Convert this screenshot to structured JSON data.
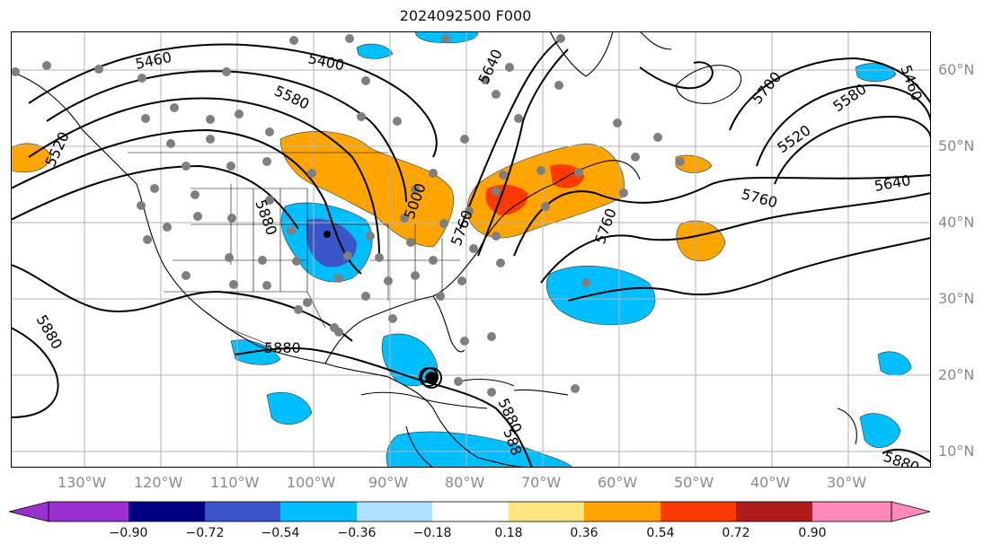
{
  "title": "2024092500 F000",
  "lat_labels": [
    "60°N",
    "50°N",
    "40°N",
    "30°N",
    "20°N",
    "10°N"
  ],
  "lon_labels": [
    "130°W",
    "120°W",
    "110°W",
    "100°W",
    "90°W",
    "80°W",
    "70°W",
    "60°W",
    "50°W",
    "40°W",
    "30°W"
  ],
  "contour_labels": [
    "5460",
    "5400",
    "5640",
    "5580",
    "5520",
    "5880",
    "5700",
    "5580",
    "5520",
    "5760",
    "5640",
    "5460",
    "5880",
    "5000",
    "5880",
    "5880",
    "5880",
    "5760",
    "5760",
    "588"
  ],
  "colorbar": {
    "ticks": [
      "−0.90",
      "−0.72",
      "−0.54",
      "−0.36",
      "−0.18",
      "0.18",
      "0.36",
      "0.54",
      "0.72",
      "0.90"
    ],
    "colors": [
      "#9b30d0",
      "#000080",
      "#3a55c8",
      "#00bfff",
      "#aee0ff",
      "#ffffff",
      "#ffe680",
      "#ffa500",
      "#ff3a00",
      "#b01c1c",
      "#ff88bb"
    ]
  },
  "colors": {
    "orange": "#ffa500",
    "red": "#ff3a00",
    "lightblue": "#00bfff",
    "blue": "#3a55c8",
    "stations": "#7f7f7f",
    "grid": "#b3b3b3"
  }
}
